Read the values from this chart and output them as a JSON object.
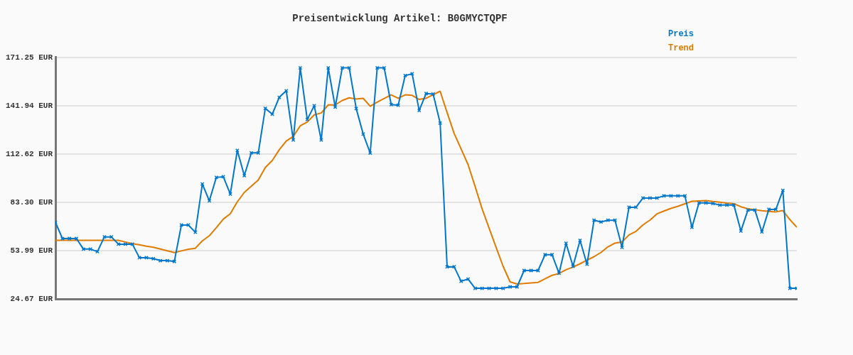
{
  "chart_data": {
    "type": "line",
    "title": "Preisentwicklung Artikel: B0GMYCTQPF",
    "categories": [
      null,
      null,
      null,
      null,
      null,
      null,
      null,
      null,
      null,
      null,
      null,
      null,
      null,
      null,
      null,
      null,
      null,
      null,
      null,
      null,
      null,
      null,
      null,
      null,
      null,
      null,
      null,
      null,
      null,
      null,
      null,
      null,
      null,
      null,
      null,
      null,
      null,
      null,
      null,
      null,
      null,
      null,
      null,
      null,
      null,
      null,
      null,
      null,
      null,
      null,
      null,
      null,
      null,
      null,
      null,
      null,
      null,
      null,
      null,
      null,
      null,
      null,
      null,
      null,
      null,
      null,
      null,
      null,
      null,
      null,
      null,
      null,
      null,
      null,
      null,
      null,
      null,
      null,
      null,
      null,
      null,
      null,
      null,
      null,
      null,
      null,
      null,
      null,
      null,
      null,
      null,
      null,
      null,
      null,
      null,
      null,
      null,
      null,
      null,
      null,
      null,
      null,
      null,
      null,
      null,
      null,
      null
    ],
    "series": [
      {
        "name": "Preis",
        "color": "#0077cc",
        "marker": "cross",
        "values": [
          71.1,
          61.3,
          61.3,
          61.3,
          54.9,
          54.9,
          53.4,
          62.3,
          62.3,
          57.9,
          57.9,
          57.9,
          49.7,
          49.7,
          49.1,
          47.9,
          47.9,
          47.4,
          69.5,
          69.5,
          65.1,
          94.4,
          84.2,
          98.4,
          98.8,
          88.3,
          114.8,
          99.5,
          113.3,
          113.3,
          140.3,
          136.8,
          147.0,
          151.0,
          121.1,
          164.9,
          133.5,
          141.9,
          121.1,
          164.9,
          141.1,
          164.9,
          164.9,
          140.2,
          124.7,
          113.2,
          164.9,
          164.9,
          142.6,
          142.2,
          160.2,
          161.3,
          139.0,
          149.3,
          149.0,
          131.4,
          44.1,
          44.2,
          35.4,
          36.7,
          31.1,
          31.1,
          31.1,
          31.1,
          31.1,
          32.0,
          32.0,
          41.9,
          41.9,
          41.9,
          51.5,
          51.5,
          40.2,
          58.4,
          44.5,
          60.2,
          45.7,
          72.4,
          71.4,
          72.4,
          72.4,
          56.0,
          80.3,
          80.3,
          85.9,
          85.9,
          85.9,
          87.2,
          87.2,
          87.2,
          87.2,
          68.1,
          82.9,
          82.9,
          82.6,
          81.6,
          81.6,
          81.6,
          65.9,
          78.6,
          78.6,
          65.3,
          79.0,
          79.0,
          90.5,
          31.1,
          31.1
        ]
      },
      {
        "name": "Trend",
        "color": "#e07b00",
        "marker": "none",
        "values": [
          60.2,
          60.2,
          60.2,
          60.2,
          60.2,
          60.2,
          60.2,
          60.2,
          60.2,
          60.2,
          59.2,
          58.2,
          57.5,
          56.7,
          56.0,
          54.9,
          53.9,
          52.8,
          53.8,
          54.8,
          55.4,
          59.9,
          63.0,
          67.9,
          73.1,
          76.4,
          83.6,
          89.3,
          93.1,
          96.8,
          104.4,
          108.7,
          115.2,
          120.5,
          123.3,
          129.7,
          132.0,
          136.4,
          137.5,
          142.4,
          142.4,
          145.1,
          146.7,
          146.0,
          146.4,
          141.6,
          144.1,
          146.3,
          148.5,
          146.4,
          148.5,
          148.2,
          145.7,
          146.4,
          148.6,
          150.7,
          137.7,
          125.1,
          115.6,
          106.1,
          92.9,
          79.3,
          67.6,
          56.0,
          44.5,
          35.0,
          33.7,
          34.0,
          34.4,
          34.7,
          36.9,
          39.0,
          40.1,
          42.4,
          44.0,
          46.0,
          48.2,
          50.3,
          52.9,
          56.3,
          58.5,
          59.2,
          63.5,
          65.7,
          69.6,
          72.5,
          76.3,
          78.0,
          79.6,
          80.9,
          82.4,
          83.9,
          84.1,
          84.3,
          83.8,
          83.4,
          82.8,
          82.4,
          80.6,
          79.4,
          78.8,
          78.2,
          77.8,
          77.5,
          78.3,
          72.8,
          68.1
        ]
      }
    ],
    "ylim": [
      24.67,
      171.25
    ],
    "yticks": [
      {
        "value": 24.67,
        "label": "24.67 EUR"
      },
      {
        "value": 53.99,
        "label": "53.99 EUR"
      },
      {
        "value": 83.3,
        "label": "83.30 EUR"
      },
      {
        "value": 112.62,
        "label": "112.62 EUR"
      },
      {
        "value": 141.94,
        "label": "141.94 EUR"
      },
      {
        "value": 171.25,
        "label": "171.25 EUR"
      }
    ],
    "grid": "y",
    "legend": "top right",
    "line_style": "solid"
  }
}
